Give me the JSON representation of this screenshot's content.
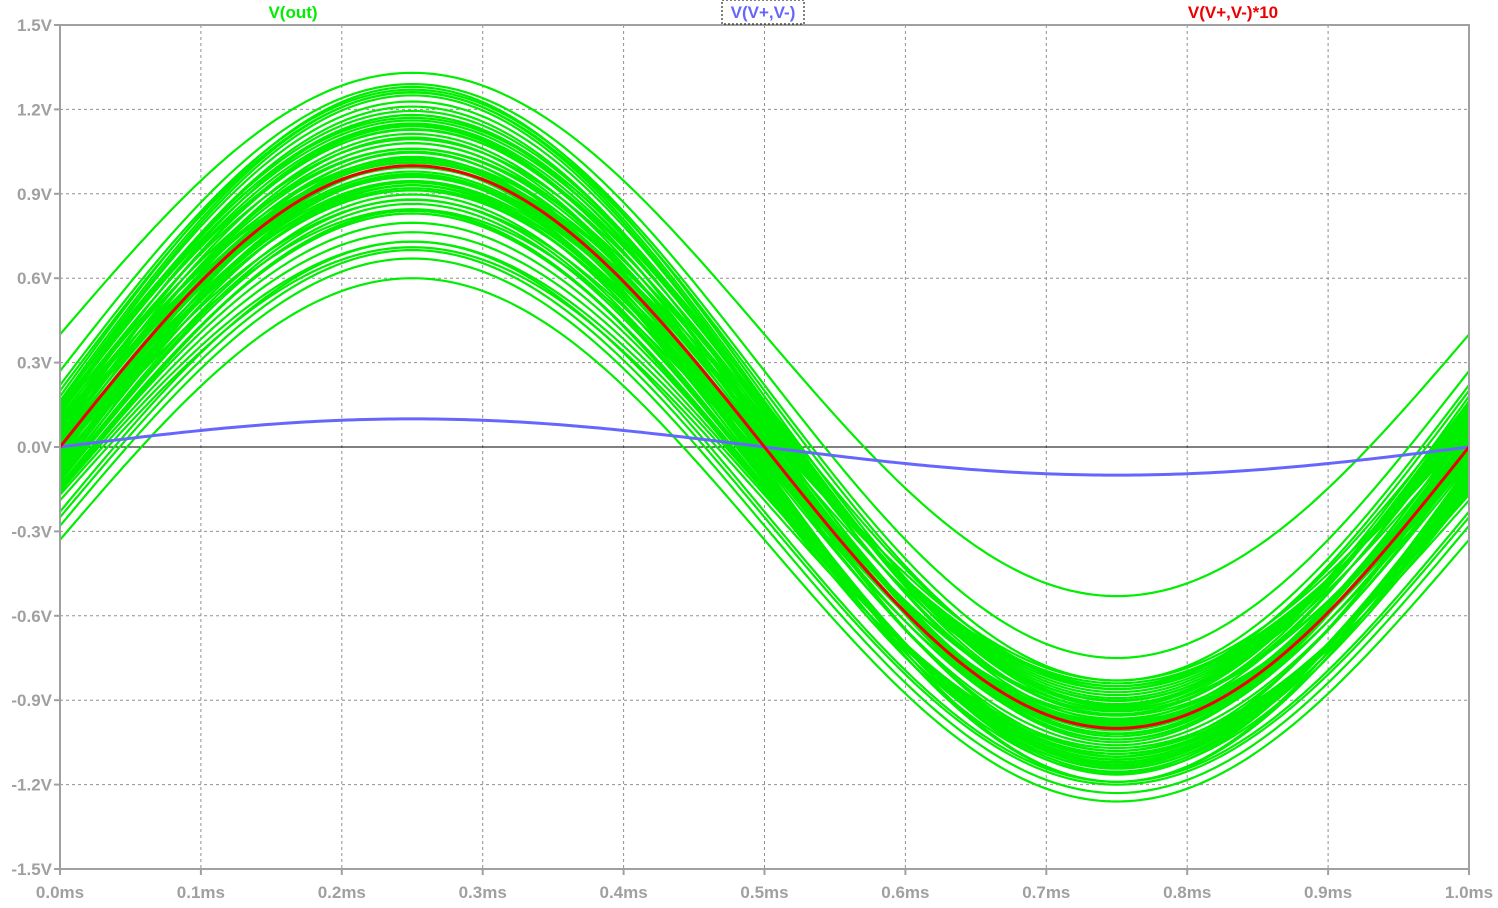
{
  "chart_data": {
    "type": "line",
    "x_axis": {
      "unit": "ms",
      "min": 0.0,
      "max": 1.0,
      "ticks": [
        0.0,
        0.1,
        0.2,
        0.3,
        0.4,
        0.5,
        0.6,
        0.7,
        0.8,
        0.9,
        1.0
      ],
      "tick_labels": [
        "0.0ms",
        "0.1ms",
        "0.2ms",
        "0.3ms",
        "0.4ms",
        "0.5ms",
        "0.6ms",
        "0.7ms",
        "0.8ms",
        "0.9ms",
        "1.0ms"
      ]
    },
    "y_axis": {
      "unit": "V",
      "min": -1.5,
      "max": 1.5,
      "ticks": [
        1.5,
        1.2,
        0.9,
        0.6,
        0.3,
        0.0,
        -0.3,
        -0.6,
        -0.9,
        -1.2,
        -1.5
      ],
      "tick_labels": [
        "1.5V",
        "1.2V",
        "0.9V",
        "0.6V",
        "0.3V",
        "0.0V",
        "-0.3V",
        "-0.6V",
        "-0.9V",
        "-1.2V",
        "-1.5V"
      ]
    },
    "grid": true,
    "zero_line": true,
    "legend": [
      {
        "label": "V(out)",
        "color": "#00ee00"
      },
      {
        "label": "V(V+,V-)",
        "color": "#6666ff",
        "selected": true
      },
      {
        "label": "V(V+,V-)*10",
        "color": "#ee0000"
      }
    ],
    "series": [
      {
        "name": "V(V+,V-)",
        "color": "#6666ff",
        "period_ms": 1.0,
        "amplitude": 0.1,
        "offset": 0.0,
        "x": [
          0.0,
          0.05,
          0.1,
          0.15,
          0.2,
          0.25,
          0.3,
          0.35,
          0.4,
          0.45,
          0.5,
          0.55,
          0.6,
          0.65,
          0.7,
          0.75,
          0.8,
          0.85,
          0.9,
          0.95,
          1.0
        ],
        "y": [
          0.0,
          0.031,
          0.059,
          0.081,
          0.095,
          0.1,
          0.095,
          0.081,
          0.059,
          0.031,
          0.0,
          -0.031,
          -0.059,
          -0.081,
          -0.095,
          -0.1,
          -0.095,
          -0.081,
          -0.059,
          -0.031,
          0.0
        ]
      },
      {
        "name": "V(V+,V-)*10",
        "color": "#ee0000",
        "period_ms": 1.0,
        "amplitude": 1.0,
        "offset": 0.0,
        "x": [
          0.0,
          0.05,
          0.1,
          0.15,
          0.2,
          0.25,
          0.3,
          0.35,
          0.4,
          0.45,
          0.5,
          0.55,
          0.6,
          0.65,
          0.7,
          0.75,
          0.8,
          0.85,
          0.9,
          0.95,
          1.0
        ],
        "y": [
          0.0,
          0.309,
          0.588,
          0.809,
          0.951,
          1.0,
          0.951,
          0.809,
          0.588,
          0.309,
          0.0,
          -0.309,
          -0.588,
          -0.809,
          -0.951,
          -1.0,
          -0.951,
          -0.809,
          -0.588,
          -0.309,
          0.0
        ]
      },
      {
        "name": "V(out)",
        "color": "#00ee00",
        "description": "Monte Carlo family of sinusoids (period 1.0ms), each with its own amplitude and DC offset",
        "period_ms": 1.0,
        "runs": [
          {
            "amplitude": 0.93,
            "offset": 0.4
          },
          {
            "amplitude": 0.93,
            "offset": -0.33
          },
          {
            "amplitude": 0.93,
            "offset": 0.0
          },
          {
            "amplitude": 0.9,
            "offset": -0.19
          },
          {
            "amplitude": 0.95,
            "offset": -0.28
          },
          {
            "amplitude": 0.95,
            "offset": -0.25
          },
          {
            "amplitude": 0.96,
            "offset": -0.23
          },
          {
            "amplitude": 1.02,
            "offset": 0.27
          },
          {
            "amplitude": 1.05,
            "offset": 0.22
          },
          {
            "amplitude": 1.06,
            "offset": 0.2
          },
          {
            "amplitude": 1.1,
            "offset": 0.18
          },
          {
            "amplitude": 1.1,
            "offset": 0.15
          },
          {
            "amplitude": 1.09,
            "offset": 0.12
          },
          {
            "amplitude": 1.05,
            "offset": 0.1
          },
          {
            "amplitude": 1.1,
            "offset": 0.08
          },
          {
            "amplitude": 1.08,
            "offset": 0.06
          },
          {
            "amplitude": 1.02,
            "offset": 0.04
          },
          {
            "amplitude": 1.05,
            "offset": 0.03
          },
          {
            "amplitude": 1.0,
            "offset": 0.02
          },
          {
            "amplitude": 0.95,
            "offset": 0.01
          },
          {
            "amplitude": 0.98,
            "offset": -0.01
          },
          {
            "amplitude": 1.02,
            "offset": -0.02
          },
          {
            "amplitude": 0.96,
            "offset": -0.03
          },
          {
            "amplitude": 1.04,
            "offset": -0.04
          },
          {
            "amplitude": 0.97,
            "offset": -0.05
          },
          {
            "amplitude": 1.0,
            "offset": -0.06
          },
          {
            "amplitude": 1.05,
            "offset": -0.08
          },
          {
            "amplitude": 1.03,
            "offset": -0.1
          },
          {
            "amplitude": 1.0,
            "offset": -0.12
          },
          {
            "amplitude": 0.97,
            "offset": -0.14
          },
          {
            "amplitude": 1.0,
            "offset": -0.16
          },
          {
            "amplitude": 1.1,
            "offset": 0.0
          },
          {
            "amplitude": 1.05,
            "offset": 0.13
          },
          {
            "amplitude": 0.95,
            "offset": 0.05
          },
          {
            "amplitude": 1.12,
            "offset": -0.07
          },
          {
            "amplitude": 0.92,
            "offset": 0.09
          },
          {
            "amplitude": 1.08,
            "offset": -0.11
          },
          {
            "amplitude": 1.01,
            "offset": 0.16
          },
          {
            "amplitude": 0.99,
            "offset": -0.15
          },
          {
            "amplitude": 1.06,
            "offset": 0.07
          }
        ]
      }
    ]
  }
}
